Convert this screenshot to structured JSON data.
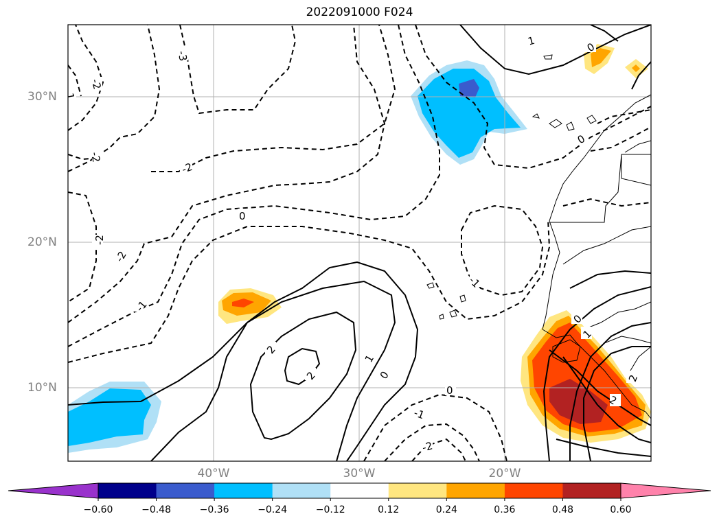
{
  "title": "2022091000 F024",
  "axes": {
    "lat_ticks": [
      "30°N",
      "20°N",
      "10°N"
    ],
    "lon_ticks": [
      "40°W",
      "30°W",
      "20°W"
    ]
  },
  "colorbar": {
    "ticks": [
      "−0.60",
      "−0.48",
      "−0.36",
      "−0.24",
      "−0.12",
      "0.12",
      "0.24",
      "0.36",
      "0.48",
      "0.60"
    ],
    "colors": [
      "#9932cc",
      "#00008b",
      "#3a5bcd",
      "#00bfff",
      "#b0e0f6",
      "#ffffff",
      "#ffe680",
      "#ffa500",
      "#ff4500",
      "#b22222",
      "#ff82ab"
    ]
  },
  "contour_labels": {
    "n3": "-3",
    "n2": "-2",
    "n1": "-1",
    "z": "0",
    "p1": "1",
    "p2": "2"
  }
}
